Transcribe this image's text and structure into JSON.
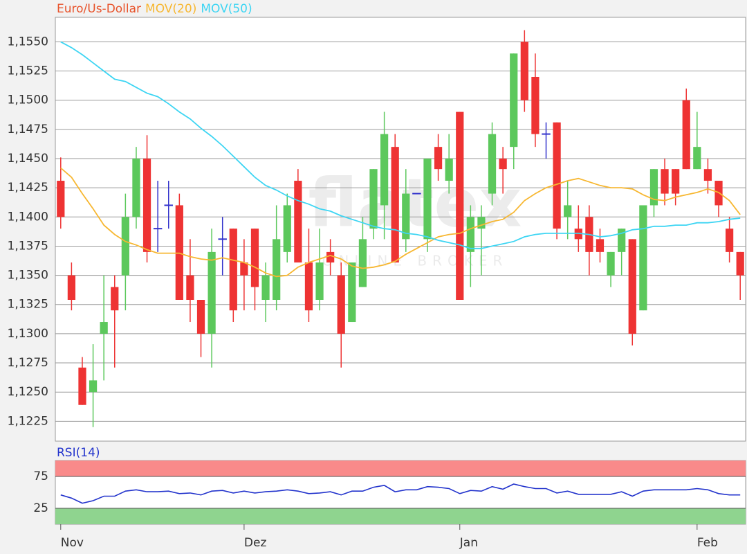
{
  "watermark": {
    "logo": "flatex",
    "tagline": "ONLINE BROKER"
  },
  "chart_data": [
    {
      "type": "candlestick",
      "title": "Euro/Us-Dollar",
      "title_color": "#e8532b",
      "up_color": "#5cc85c",
      "down_color": "#ee3333",
      "doji_color": "#3333cc",
      "open": [
        1.1431,
        1.135,
        1.1271,
        1.125,
        1.13,
        1.134,
        1.135,
        1.14,
        1.145,
        1.139,
        1.141,
        1.141,
        1.135,
        1.1329,
        1.13,
        1.1381,
        1.139,
        1.1361,
        1.139,
        1.1329,
        1.1329,
        1.137,
        1.1431,
        1.1361,
        1.1329,
        1.137,
        1.135,
        1.131,
        1.134,
        1.139,
        1.141,
        1.146,
        1.1381,
        1.142,
        1.1381,
        1.146,
        1.1431,
        1.149,
        1.137,
        1.139,
        1.142,
        1.145,
        1.146,
        1.155,
        1.152,
        1.1471,
        1.1481,
        1.14,
        1.139,
        1.14,
        1.1381,
        1.135,
        1.137,
        1.1381,
        1.132,
        1.141,
        1.1441,
        1.1441,
        1.15,
        1.1441,
        1.1441,
        1.1431,
        1.139,
        1.137
      ],
      "high": [
        1.1451,
        1.1361,
        1.128,
        1.1291,
        1.135,
        1.135,
        1.142,
        1.146,
        1.147,
        1.1431,
        1.1431,
        1.142,
        1.1381,
        1.1329,
        1.139,
        1.14,
        1.139,
        1.1381,
        1.139,
        1.1361,
        1.141,
        1.142,
        1.1441,
        1.139,
        1.139,
        1.1381,
        1.1361,
        1.1361,
        1.14,
        1.1441,
        1.149,
        1.1471,
        1.1441,
        1.142,
        1.145,
        1.1471,
        1.1471,
        1.149,
        1.141,
        1.141,
        1.1481,
        1.146,
        1.154,
        1.156,
        1.154,
        1.1481,
        1.1481,
        1.1431,
        1.141,
        1.141,
        1.139,
        1.137,
        1.139,
        1.1381,
        1.141,
        1.1441,
        1.145,
        1.1441,
        1.151,
        1.149,
        1.145,
        1.1431,
        1.14,
        1.137
      ],
      "low": [
        1.139,
        1.132,
        1.1239,
        1.122,
        1.126,
        1.1271,
        1.132,
        1.139,
        1.1361,
        1.137,
        1.139,
        1.1329,
        1.131,
        1.128,
        1.1271,
        1.135,
        1.131,
        1.132,
        1.132,
        1.131,
        1.132,
        1.1361,
        1.1361,
        1.131,
        1.132,
        1.135,
        1.1271,
        1.131,
        1.134,
        1.1381,
        1.1381,
        1.1361,
        1.137,
        1.142,
        1.137,
        1.1431,
        1.142,
        1.1329,
        1.134,
        1.135,
        1.141,
        1.142,
        1.1441,
        1.149,
        1.146,
        1.145,
        1.1381,
        1.1381,
        1.137,
        1.135,
        1.1361,
        1.134,
        1.135,
        1.129,
        1.132,
        1.14,
        1.141,
        1.141,
        1.1441,
        1.1441,
        1.142,
        1.14,
        1.1361,
        1.1329
      ],
      "close": [
        1.14,
        1.1329,
        1.1239,
        1.126,
        1.131,
        1.132,
        1.14,
        1.145,
        1.137,
        1.139,
        1.141,
        1.1329,
        1.1329,
        1.13,
        1.137,
        1.1381,
        1.132,
        1.135,
        1.134,
        1.135,
        1.1381,
        1.141,
        1.1361,
        1.132,
        1.1361,
        1.1361,
        1.13,
        1.1361,
        1.1381,
        1.1441,
        1.1471,
        1.1361,
        1.142,
        1.142,
        1.145,
        1.1441,
        1.145,
        1.1329,
        1.14,
        1.14,
        1.1471,
        1.1441,
        1.154,
        1.15,
        1.1471,
        1.1471,
        1.139,
        1.141,
        1.1381,
        1.137,
        1.137,
        1.137,
        1.139,
        1.13,
        1.141,
        1.1441,
        1.142,
        1.142,
        1.1441,
        1.146,
        1.1431,
        1.141,
        1.137,
        1.135
      ],
      "series": [
        {
          "name": "MOV(20)",
          "color": "#f7b731",
          "values": [
            1.1442,
            1.1434,
            1.142,
            1.1407,
            1.1393,
            1.1385,
            1.1379,
            1.1376,
            1.1372,
            1.1369,
            1.1369,
            1.1369,
            1.1366,
            1.1364,
            1.1363,
            1.1365,
            1.1363,
            1.1361,
            1.1357,
            1.1352,
            1.1349,
            1.135,
            1.1357,
            1.1361,
            1.1364,
            1.1367,
            1.1364,
            1.1358,
            1.1356,
            1.1357,
            1.1359,
            1.1362,
            1.1368,
            1.1373,
            1.1378,
            1.1383,
            1.1385,
            1.1386,
            1.139,
            1.1393,
            1.1396,
            1.1398,
            1.1404,
            1.1414,
            1.142,
            1.1425,
            1.1428,
            1.1431,
            1.1433,
            1.143,
            1.1427,
            1.1425,
            1.1425,
            1.1424,
            1.1419,
            1.1415,
            1.1414,
            1.1417,
            1.1419,
            1.1421,
            1.1424,
            1.1421,
            1.1414,
            1.1402
          ]
        },
        {
          "name": "MOV(50)",
          "color": "#3dd5f3",
          "values": [
            1.155,
            1.1545,
            1.1539,
            1.1532,
            1.1525,
            1.1518,
            1.1516,
            1.1511,
            1.1506,
            1.1503,
            1.1497,
            1.149,
            1.1484,
            1.1476,
            1.1469,
            1.1461,
            1.1452,
            1.1443,
            1.1434,
            1.1427,
            1.1423,
            1.1418,
            1.1414,
            1.1411,
            1.1407,
            1.1405,
            1.1401,
            1.1398,
            1.1395,
            1.1392,
            1.139,
            1.1389,
            1.1386,
            1.1385,
            1.1383,
            1.138,
            1.1378,
            1.1376,
            1.1373,
            1.1373,
            1.1375,
            1.1377,
            1.1379,
            1.1383,
            1.1385,
            1.1386,
            1.1386,
            1.1386,
            1.1386,
            1.1385,
            1.1383,
            1.1384,
            1.1386,
            1.1389,
            1.139,
            1.1392,
            1.1392,
            1.1393,
            1.1393,
            1.1395,
            1.1395,
            1.1396,
            1.1398,
            1.1399
          ]
        }
      ],
      "ylim": [
        1.1208,
        1.1571
      ],
      "yticks": [
        {
          "value": 1.1225,
          "label": "1,1225"
        },
        {
          "value": 1.125,
          "label": "1,1250"
        },
        {
          "value": 1.1275,
          "label": "1,1275"
        },
        {
          "value": 1.13,
          "label": "1,1300"
        },
        {
          "value": 1.1325,
          "label": "1,1325"
        },
        {
          "value": 1.135,
          "label": "1,1350"
        },
        {
          "value": 1.1375,
          "label": "1,1375"
        },
        {
          "value": 1.14,
          "label": "1,1400"
        },
        {
          "value": 1.1425,
          "label": "1,1425"
        },
        {
          "value": 1.145,
          "label": "1,1450"
        },
        {
          "value": 1.1475,
          "label": "1,1475"
        },
        {
          "value": 1.15,
          "label": "1,1500"
        },
        {
          "value": 1.1525,
          "label": "1,1525"
        },
        {
          "value": 1.155,
          "label": "1,1550"
        }
      ],
      "grid": true
    },
    {
      "type": "line",
      "title": "RSI(14)",
      "color": "#2233cc",
      "categories": [
        "Nov",
        null,
        null,
        null,
        null,
        null,
        null,
        null,
        null,
        null,
        null,
        null,
        null,
        null,
        null,
        null,
        null,
        "Dez",
        null,
        null,
        null,
        null,
        null,
        null,
        null,
        null,
        null,
        null,
        null,
        null,
        null,
        null,
        null,
        null,
        null,
        null,
        null,
        "Jan",
        null,
        null,
        null,
        null,
        null,
        null,
        null,
        null,
        null,
        null,
        null,
        null,
        null,
        null,
        null,
        null,
        null,
        null,
        null,
        null,
        null,
        "Feb",
        null,
        null,
        null,
        null
      ],
      "values": [
        46,
        41,
        33,
        37,
        44,
        44,
        52,
        54,
        51,
        51,
        52,
        48,
        49,
        46,
        52,
        53,
        49,
        52,
        49,
        51,
        52,
        54,
        52,
        48,
        49,
        51,
        46,
        52,
        52,
        58,
        61,
        51,
        54,
        54,
        59,
        58,
        56,
        48,
        53,
        52,
        59,
        55,
        63,
        59,
        56,
        56,
        49,
        52,
        47,
        47,
        47,
        47,
        51,
        44,
        52,
        54,
        54,
        54,
        54,
        56,
        54,
        48,
        46,
        46
      ],
      "bands": [
        {
          "from": 75,
          "to": 100,
          "color": "#f98a8a"
        },
        {
          "from": 0,
          "to": 25,
          "color": "#8fd48f"
        }
      ],
      "ylim": [
        0,
        100
      ],
      "yticks": [
        25,
        75
      ],
      "grid": true
    }
  ]
}
